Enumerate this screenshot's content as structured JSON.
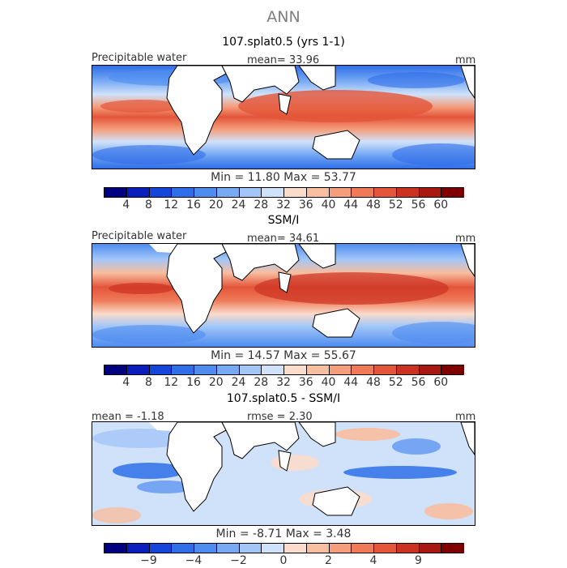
{
  "header": {
    "title": "ANN"
  },
  "panels": [
    {
      "title": "107.splat0.5 (yrs 1-1)",
      "field_label": "Precipitable water",
      "stat_left": "",
      "stat_center": "mean=   33.96",
      "units": "mm",
      "min_max": "Min =   11.80  Max =   53.77",
      "kind": "model"
    },
    {
      "title": "SSM/I",
      "field_label": "Precipitable water",
      "stat_left": "",
      "stat_center": "mean=   34.61",
      "units": "mm",
      "min_max": "Min =   14.57  Max =   55.67",
      "kind": "obs"
    },
    {
      "title": "107.splat0.5 - SSM/I",
      "field_label": "",
      "stat_left": "mean =   -1.18",
      "stat_center": "rmse =    2.30",
      "units": "mm",
      "min_max": "Min =   -8.71  Max =    3.48",
      "kind": "diff"
    }
  ],
  "chart_data": [
    {
      "type": "heatmap",
      "title": "107.splat0.5 (yrs 1-1)",
      "variable": "Precipitable water",
      "units": "mm",
      "mean": 33.96,
      "min": 11.8,
      "max": 53.77,
      "colorbar_levels": [
        4,
        8,
        12,
        16,
        20,
        24,
        28,
        32,
        36,
        40,
        44,
        48,
        52,
        56,
        60
      ],
      "colorbar_colors": [
        "#000080",
        "#0a1ebe",
        "#1446dc",
        "#2e6ee8",
        "#4e8cf0",
        "#78aaf4",
        "#a2c6f8",
        "#d0e2fa",
        "#fbdccb",
        "#f8bea0",
        "#f49e7c",
        "#ee7a58",
        "#e4553a",
        "#cc3222",
        "#a81810",
        "#800000"
      ]
    },
    {
      "type": "heatmap",
      "title": "SSM/I",
      "variable": "Precipitable water",
      "units": "mm",
      "mean": 34.61,
      "min": 14.57,
      "max": 55.67,
      "colorbar_levels": [
        4,
        8,
        12,
        16,
        20,
        24,
        28,
        32,
        36,
        40,
        44,
        48,
        52,
        56,
        60
      ],
      "colorbar_colors": [
        "#000080",
        "#0a1ebe",
        "#1446dc",
        "#2e6ee8",
        "#4e8cf0",
        "#78aaf4",
        "#a2c6f8",
        "#d0e2fa",
        "#fbdccb",
        "#f8bea0",
        "#f49e7c",
        "#ee7a58",
        "#e4553a",
        "#cc3222",
        "#a81810",
        "#800000"
      ]
    },
    {
      "type": "heatmap",
      "title": "107.splat0.5 - SSM/I",
      "units": "mm",
      "mean": -1.18,
      "rmse": 2.3,
      "min": -8.71,
      "max": 3.48,
      "colorbar_labels": [
        "−9",
        "−4",
        "−2",
        "0",
        "2",
        "4",
        "9"
      ],
      "colorbar_colors": [
        "#000080",
        "#0a1ebe",
        "#1446dc",
        "#2e6ee8",
        "#4e8cf0",
        "#78aaf4",
        "#a2c6f8",
        "#d0e2fa",
        "#fbdccb",
        "#f8bea0",
        "#f49e7c",
        "#ee7a58",
        "#e4553a",
        "#cc3222",
        "#a81810",
        "#800000"
      ]
    }
  ]
}
